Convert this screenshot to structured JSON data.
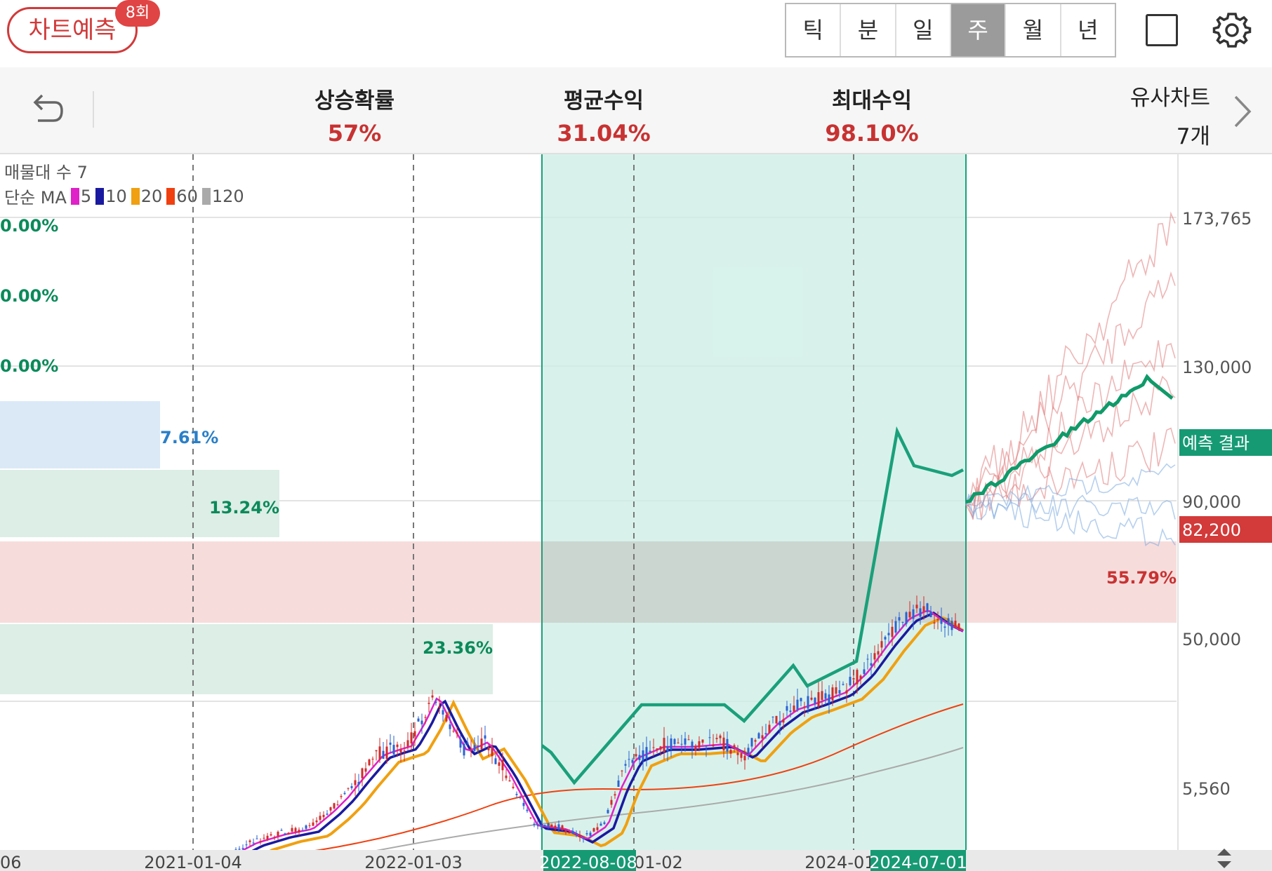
{
  "header": {
    "predict_button": "차트예측",
    "predict_count": "8회",
    "period_tabs": [
      "틱",
      "분",
      "일",
      "주",
      "월",
      "년"
    ],
    "active_tab": "주"
  },
  "stats": {
    "rise_prob": {
      "label": "상승확률",
      "value": "57%"
    },
    "avg_return": {
      "label": "평균수익",
      "value": "31.04%"
    },
    "max_return": {
      "label": "최대수익",
      "value": "98.10%"
    },
    "similar": {
      "label": "유사차트",
      "value": "7개"
    }
  },
  "chart_info": {
    "volume_profile_label": "매물대 수 7",
    "ma_label": "단순 MA",
    "ma_periods": [
      "5",
      "10",
      "20",
      "60",
      "120"
    ],
    "ma_colors": [
      "#e020c8",
      "#1a1aa0",
      "#f0a010",
      "#f04010",
      "#aaaaaa"
    ]
  },
  "chart_data": {
    "type": "candlestick",
    "x_ticks": [
      "06",
      "2021-01-04",
      "2022-01-03",
      "2023-01-02",
      "2024-01-01"
    ],
    "y_ticks": [
      "173,765",
      "130,000",
      "90,000",
      "50,000",
      "5,560"
    ],
    "highlight_range": [
      "2022-08-08",
      "2024-07-01"
    ],
    "highlight_labels": [
      "2022-08-08",
      "2024-07-01"
    ],
    "current_price": "82,200",
    "prediction_label": "예측 결과",
    "volume_profile": [
      {
        "pct": "0.00%",
        "color": "#0a8a5a"
      },
      {
        "pct": "0.00%",
        "color": "#0a8a5a"
      },
      {
        "pct": "0.00%",
        "color": "#0a8a5a"
      },
      {
        "pct": "7.61%",
        "color": "#2a7fc8"
      },
      {
        "pct": "13.24%",
        "color": "#0a8a5a"
      },
      {
        "pct": "55.79%",
        "color": "#c83232"
      },
      {
        "pct": "23.36%",
        "color": "#0a8a5a"
      }
    ]
  }
}
